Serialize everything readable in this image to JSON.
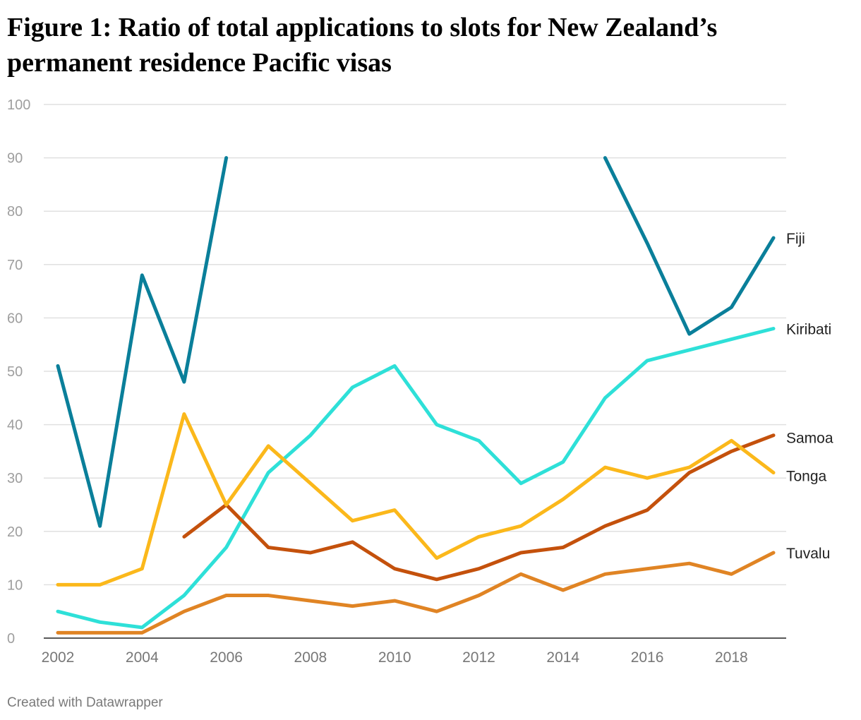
{
  "title": "Figure 1: Ratio of total applications to slots for New Zealand’s permanent residence Pacific visas",
  "credit": "Created with Datawrapper",
  "chart_data": {
    "type": "line",
    "title": "Figure 1: Ratio of total applications to slots for New Zealand’s permanent residence Pacific visas",
    "xlabel": "",
    "ylabel": "",
    "xlim": [
      2002,
      2019
    ],
    "ylim": [
      0,
      100
    ],
    "x_ticks": [
      2002,
      2004,
      2006,
      2008,
      2010,
      2012,
      2014,
      2016,
      2018
    ],
    "y_ticks": [
      0,
      10,
      20,
      30,
      40,
      50,
      60,
      70,
      80,
      90,
      100
    ],
    "grid": true,
    "legend": "direct labels at right end of lines",
    "x": [
      2002,
      2003,
      2004,
      2005,
      2006,
      2007,
      2008,
      2009,
      2010,
      2011,
      2012,
      2013,
      2014,
      2015,
      2016,
      2017,
      2018,
      2019
    ],
    "series": [
      {
        "name": "Fiji",
        "color": "#0a7f9a",
        "values": [
          51,
          21,
          68,
          48,
          90,
          null,
          null,
          null,
          null,
          null,
          null,
          null,
          null,
          90,
          74,
          57,
          62,
          75
        ]
      },
      {
        "name": "Kiribati",
        "color": "#2ee0d8",
        "values": [
          5,
          3,
          2,
          8,
          17,
          31,
          38,
          47,
          51,
          40,
          37,
          29,
          33,
          45,
          52,
          54,
          56,
          58
        ]
      },
      {
        "name": "Samoa",
        "color": "#c4510c",
        "values": [
          null,
          null,
          null,
          19,
          25,
          17,
          16,
          18,
          13,
          11,
          13,
          16,
          17,
          21,
          24,
          31,
          35,
          38
        ]
      },
      {
        "name": "Tonga",
        "color": "#fbb81b",
        "values": [
          10,
          10,
          13,
          42,
          25,
          36,
          29,
          22,
          24,
          15,
          19,
          21,
          26,
          32,
          30,
          32,
          37,
          31
        ]
      },
      {
        "name": "Tuvalu",
        "color": "#e08424",
        "values": [
          1,
          1,
          1,
          5,
          8,
          8,
          7,
          6,
          7,
          5,
          8,
          12,
          9,
          12,
          13,
          14,
          12,
          16
        ]
      }
    ]
  }
}
